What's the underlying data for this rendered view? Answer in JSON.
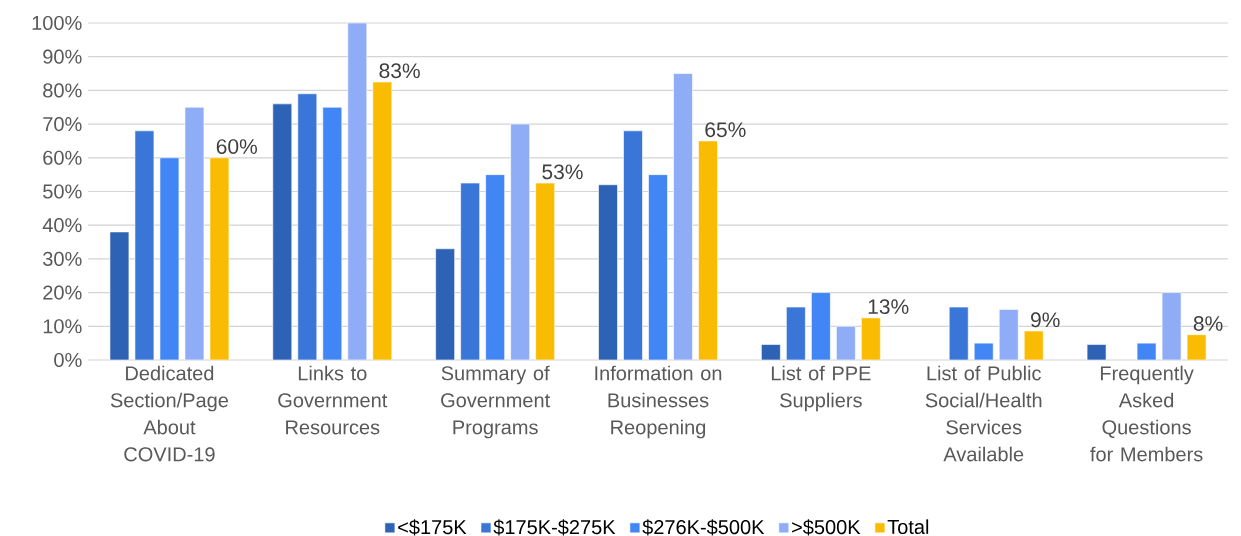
{
  "chart_data": {
    "type": "bar",
    "categories": [
      "Dedicated Section/Page About COVID-19",
      "Links to Government Resources",
      "Summary of Government Programs",
      "Information on Businesses Reopening",
      "List of PPE Suppliers",
      "List of Public Social/Health Services Available",
      "Frequently Asked Questions for Members"
    ],
    "series": [
      {
        "name": "<$175K",
        "color": "#2e62b5",
        "values": [
          38,
          76,
          33,
          52,
          4.6,
          null,
          4.6
        ]
      },
      {
        "name": "$175K-$275K",
        "color": "#3a75d8",
        "values": [
          68,
          79,
          52.5,
          68,
          15.7,
          15.7,
          null
        ]
      },
      {
        "name": "$276K-$500K",
        "color": "#4285f4",
        "values": [
          60,
          75,
          55,
          55,
          20,
          5,
          5
        ]
      },
      {
        "name": ">$500K",
        "color": "#8fadf6",
        "values": [
          75,
          100,
          70,
          85,
          10,
          15,
          20
        ]
      },
      {
        "name": "Total",
        "color": "#f9bc02",
        "values": [
          60,
          82.5,
          52.5,
          65,
          12.5,
          8.6,
          7.5
        ],
        "value_labels": [
          "60%",
          "83%",
          "53%",
          "65%",
          "13%",
          "9%",
          "8%"
        ]
      }
    ],
    "ylim": [
      0,
      100
    ],
    "yticks": [
      {
        "value": 0,
        "label": "0%"
      },
      {
        "value": 10,
        "label": "10%"
      },
      {
        "value": 20,
        "label": "20%"
      },
      {
        "value": 30,
        "label": "30%"
      },
      {
        "value": 40,
        "label": "40%"
      },
      {
        "value": 50,
        "label": "50%"
      },
      {
        "value": 60,
        "label": "60%"
      },
      {
        "value": 70,
        "label": "70%"
      },
      {
        "value": 80,
        "label": "80%"
      },
      {
        "value": 90,
        "label": "90%"
      },
      {
        "value": 100,
        "label": "100%"
      }
    ],
    "grid": "y",
    "legend": "bottom"
  }
}
